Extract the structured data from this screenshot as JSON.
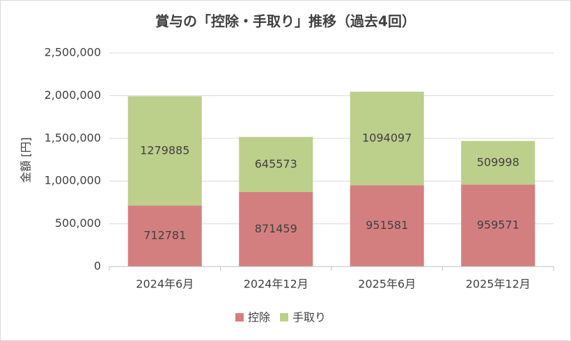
{
  "chart_data": {
    "type": "stacked_bar",
    "title": "賞与の「控除・手取り」推移（過去4回）",
    "y_label": "金額 [円]",
    "categories": [
      "2024年6月",
      "2024年12月",
      "2025年6月",
      "2025年12月"
    ],
    "series": [
      {
        "name": "控除",
        "color": "#d47f7f",
        "values": [
          712781,
          871459,
          951581,
          959571
        ]
      },
      {
        "name": "手取り",
        "color": "#bccf8b",
        "values": [
          1279885,
          645573,
          1094097,
          509998
        ]
      }
    ],
    "ylim": [
      0,
      2500000
    ],
    "yticks": [
      0,
      {
        "value": 500000,
        "label": "500,000"
      },
      {
        "value": 1000000,
        "label": "1,000,000"
      },
      {
        "value": 1500000,
        "label": "1,500,000"
      },
      {
        "value": 2000000,
        "label": "2,000,000"
      },
      {
        "value": 2500000,
        "label": "2,500,000"
      }
    ],
    "grid": true,
    "legend": "bottom"
  }
}
